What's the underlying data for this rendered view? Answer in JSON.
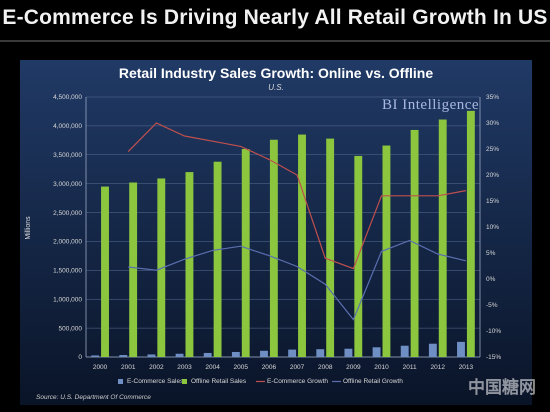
{
  "headline": "E-Commerce Is Driving Nearly All Retail Growth In US",
  "chart_data": {
    "type": "bar",
    "title": "Retail Industry Sales Growth: Online vs. Offline",
    "subtitle": "U.S.",
    "brand": "BI Intelligence",
    "ylabel": "Millions",
    "ylim": [
      0,
      4500000
    ],
    "y2lim": [
      -15,
      35
    ],
    "grid": true,
    "legend_position": "bottom",
    "categories": [
      "2000",
      "2001",
      "2002",
      "2003",
      "2004",
      "2005",
      "2006",
      "2007",
      "2008",
      "2009",
      "2010",
      "2011",
      "2012",
      "2013"
    ],
    "y_ticks": [
      "0",
      "500,000",
      "1,000,000",
      "1,500,000",
      "2,000,000",
      "2,500,000",
      "3,000,000",
      "3,500,000",
      "4,000,000",
      "4,500,000"
    ],
    "y2_ticks": [
      "-15%",
      "-10%",
      "-5%",
      "0%",
      "5%",
      "10%",
      "15%",
      "20%",
      "25%",
      "30%",
      "35%"
    ],
    "series": [
      {
        "name": "E-Commerce Sales",
        "type": "bar",
        "axis": "left",
        "color": "#6f8fc4",
        "values": [
          27000,
          34000,
          44000,
          56000,
          70000,
          87000,
          108000,
          128000,
          135000,
          143000,
          168000,
          195000,
          230000,
          262000
        ]
      },
      {
        "name": "Offline Retail Sales",
        "type": "bar",
        "axis": "left",
        "color": "#8cc63f",
        "values": [
          2950000,
          3020000,
          3090000,
          3200000,
          3380000,
          3600000,
          3760000,
          3850000,
          3780000,
          3480000,
          3660000,
          3930000,
          4110000,
          4260000
        ]
      },
      {
        "name": "E-Commerce Growth",
        "type": "line",
        "axis": "right",
        "color": "#c0504d",
        "values": [
          null,
          24.5,
          30,
          27.5,
          26.5,
          25.5,
          23,
          20,
          4,
          2,
          16,
          16,
          16,
          17
        ]
      },
      {
        "name": "Offline Retail Growth",
        "type": "line",
        "axis": "right",
        "color": "#5b6fb0",
        "values": [
          null,
          2.3,
          1.7,
          3.8,
          5.5,
          6.3,
          4.5,
          2.4,
          -1,
          -7.8,
          5.3,
          7.4,
          4.8,
          3.5
        ]
      }
    ],
    "source": "Source: U.S. Department Of Commerce"
  },
  "watermark": "中国糖网"
}
